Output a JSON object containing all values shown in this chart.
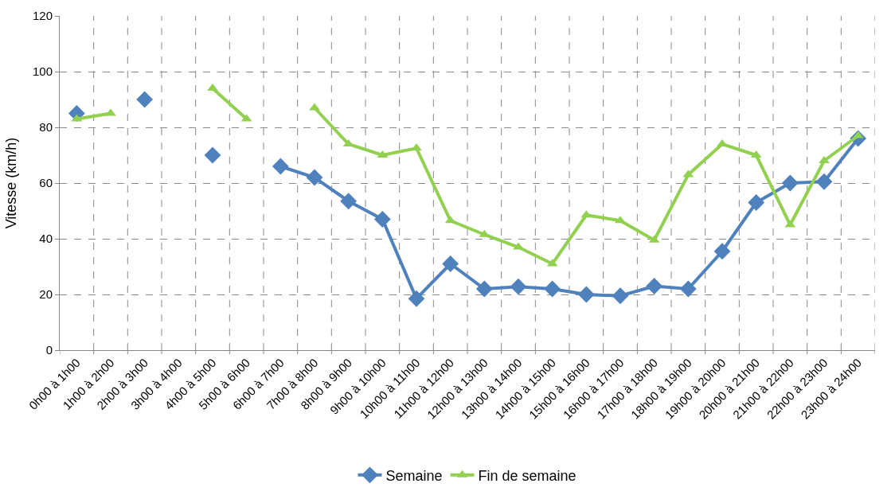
{
  "chart_data": {
    "type": "line",
    "ylabel": "Vitesse (km/h)",
    "categories": [
      "0h00 à 1h00",
      "1h00 à 2h00",
      "2h00 à 3h00",
      "3h00 à 4h00",
      "4h00 à 5h00",
      "5h00 à 6h00",
      "6h00 à 7h00",
      "7h00 à 8h00",
      "8h00 à 9h00",
      "9h00 à 10h00",
      "10h00 à 11h00",
      "11h00 à 12h00",
      "12h00 à 13h00",
      "13h00 à 14h00",
      "14h00 à 15h00",
      "15h00 à 16h00",
      "16h00 à 17h00",
      "17h00 à 18h00",
      "18h00 à 19h00",
      "19h00 à 20h00",
      "20h00 à 21h00",
      "21h00 à 22h00",
      "22h00 à 23h00",
      "23h00 à 24h00"
    ],
    "series": [
      {
        "name": "Semaine",
        "color": "#4f81bd",
        "marker": "diamond",
        "values": [
          85,
          null,
          90,
          null,
          70,
          null,
          66,
          62,
          53.5,
          47,
          18.5,
          31,
          22,
          22.8,
          22,
          20,
          19.5,
          23,
          22,
          35.5,
          53,
          60,
          60.5,
          76
        ]
      },
      {
        "name": "Fin de semaine",
        "color": "#92d050",
        "marker": "triangle",
        "values": [
          83,
          85,
          null,
          null,
          94,
          83,
          null,
          87,
          74,
          70,
          72.5,
          46.5,
          41.5,
          37,
          31,
          48.5,
          46.5,
          39.5,
          63,
          74,
          70,
          45,
          68,
          77
        ]
      }
    ],
    "ylim": [
      0,
      120
    ],
    "yticks": [
      0,
      20,
      40,
      60,
      80,
      100,
      120
    ],
    "grid": true,
    "legend": "bottom",
    "line_style": "solid"
  }
}
